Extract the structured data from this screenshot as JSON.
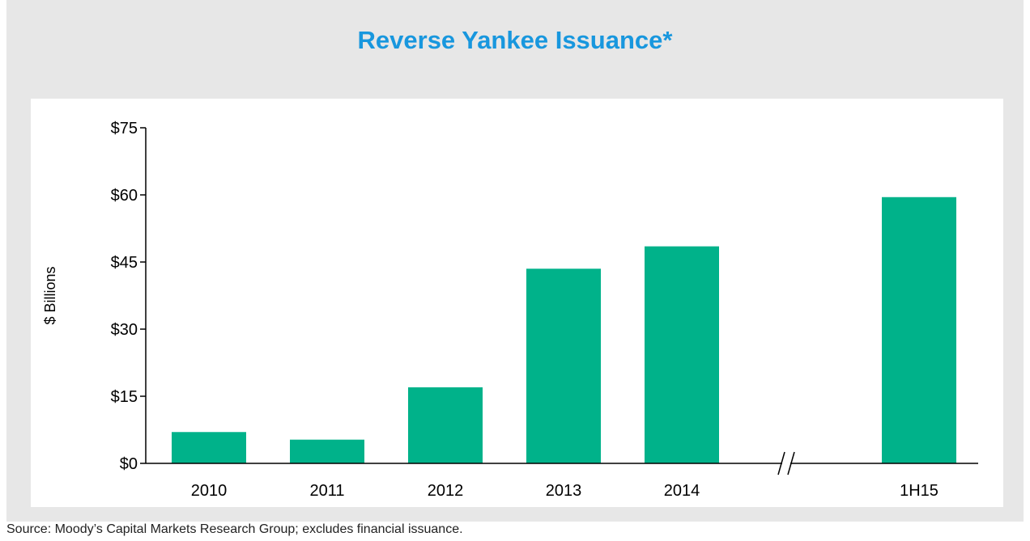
{
  "chart_data": {
    "type": "bar",
    "title": "Reverse Yankee Issuance*",
    "ylabel": "$ Billions",
    "xlabel": "",
    "categories": [
      "2010",
      "2011",
      "2012",
      "2013",
      "2014",
      "1H15"
    ],
    "values": [
      7,
      5.3,
      17,
      43.5,
      48.5,
      59.5
    ],
    "ylim": [
      0,
      75
    ],
    "yticks": [
      0,
      15,
      30,
      45,
      60,
      75
    ],
    "ytick_labels": [
      "$0",
      "$15",
      "$30",
      "$45",
      "$60",
      "$75"
    ],
    "axis_break_between": [
      "2014",
      "1H15"
    ],
    "axis_break_symbol": "//",
    "grid": false,
    "bar_color": "#00b28a"
  },
  "footer": {
    "source": "Source: Moody’s Capital Markets Research Group; excludes financial issuance."
  }
}
